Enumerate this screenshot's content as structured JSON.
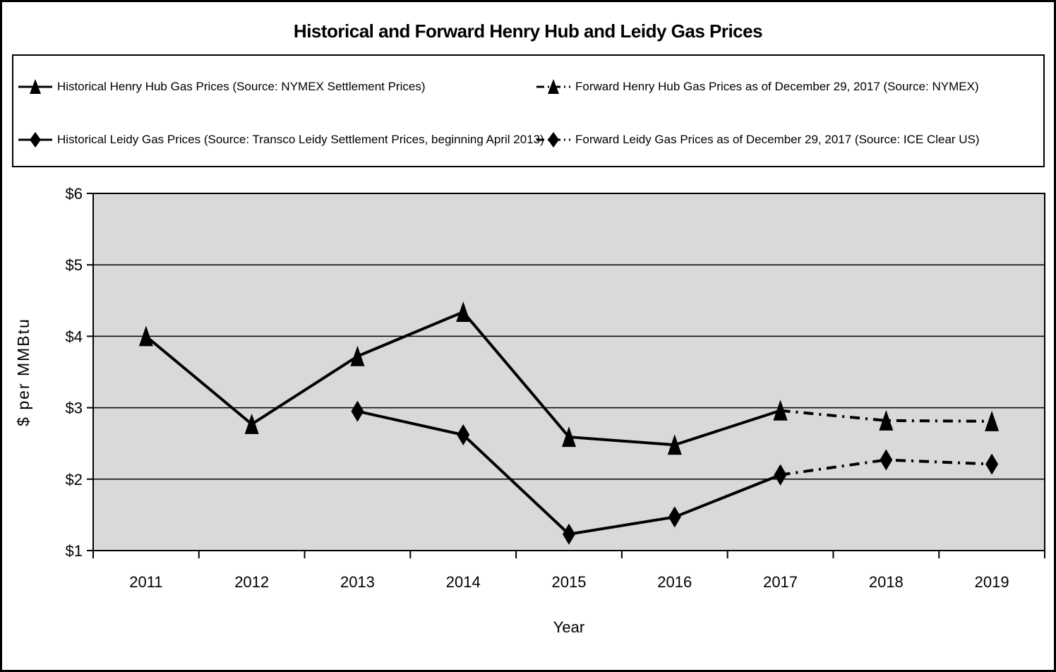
{
  "title": "Historical and Forward Henry Hub and Leidy Gas Prices",
  "legend": {
    "items": [
      {
        "label": "Historical Henry Hub Gas Prices (Source: NYMEX Settlement Prices)",
        "marker": "triangle",
        "line": "solid"
      },
      {
        "label": "Forward Henry Hub Gas Prices as of December 29, 2017 (Source: NYMEX)",
        "marker": "triangle",
        "line": "dash-dot"
      },
      {
        "label": "Historical Leidy Gas Prices (Source: Transco Leidy Settlement Prices, beginning April 2013)",
        "marker": "diamond",
        "line": "solid"
      },
      {
        "label": "Forward Leidy Gas Prices as of December 29, 2017 (Source: ICE Clear US)",
        "marker": "diamond",
        "line": "dash-dot"
      }
    ]
  },
  "chart_data": {
    "type": "line",
    "title": "Historical and Forward Henry Hub and Leidy Gas Prices",
    "x": [
      2011,
      2012,
      2013,
      2014,
      2015,
      2016,
      2017,
      2018,
      2019
    ],
    "series": [
      {
        "name": "Historical Henry Hub Gas Prices (Source: NYMEX Settlement Prices)",
        "marker": "triangle",
        "line": "solid",
        "values": [
          4.0,
          2.77,
          3.72,
          4.34,
          2.59,
          2.48,
          2.96,
          null,
          null
        ]
      },
      {
        "name": "Forward Henry Hub Gas Prices as of December 29, 2017 (Source: NYMEX)",
        "marker": "triangle",
        "line": "dash-dot",
        "values": [
          null,
          null,
          null,
          null,
          null,
          null,
          2.96,
          2.82,
          2.81
        ]
      },
      {
        "name": "Historical Leidy Gas Prices (Source: Transco Leidy Settlement Prices, beginning April 2013)",
        "marker": "diamond",
        "line": "solid",
        "values": [
          null,
          null,
          2.95,
          2.62,
          1.23,
          1.47,
          2.06,
          null,
          null
        ]
      },
      {
        "name": "Forward Leidy Gas Prices as of December 29, 2017 (Source: ICE Clear US)",
        "marker": "diamond",
        "line": "dash-dot",
        "values": [
          null,
          null,
          null,
          null,
          null,
          null,
          2.06,
          2.27,
          2.21
        ]
      }
    ],
    "xlabel": "Year",
    "ylabel": "$ per MMBtu",
    "ylim": [
      1,
      6
    ],
    "y_ticks": [
      "$1",
      "$2",
      "$3",
      "$4",
      "$5",
      "$6"
    ],
    "grid": true,
    "legend_position": "top",
    "colors": {
      "line": "#000000",
      "plot_bg": "#d9d9d9",
      "page_border": "#000000"
    }
  }
}
